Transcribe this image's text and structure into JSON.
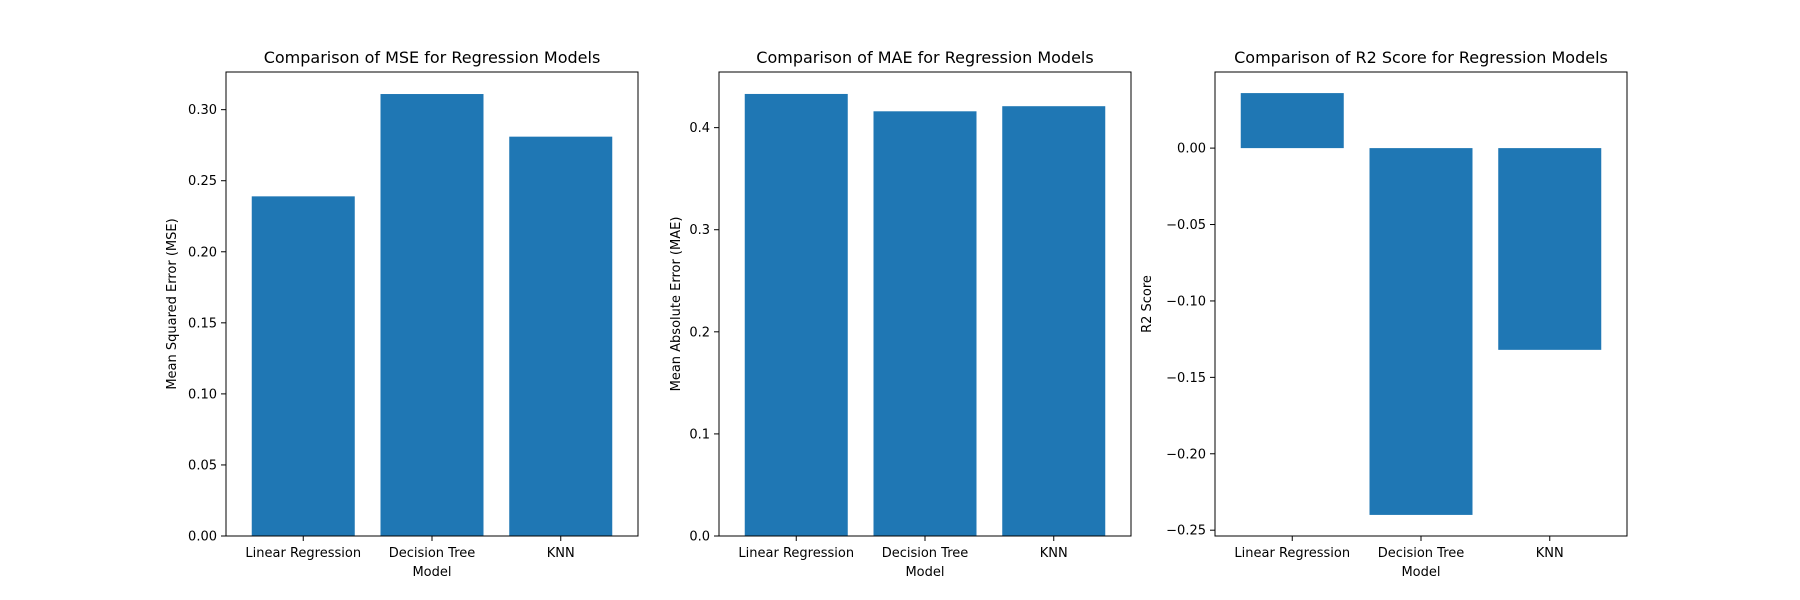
{
  "chart_data": [
    {
      "type": "bar",
      "title": "Comparison of MSE for Regression Models",
      "xlabel": "Model",
      "ylabel": "Mean Squared Error (MSE)",
      "categories": [
        "Linear Regression",
        "Decision Tree",
        "KNN"
      ],
      "values": [
        0.239,
        0.311,
        0.281
      ],
      "ylim": [
        0,
        0.3265
      ],
      "yticks": [
        0.0,
        0.05,
        0.1,
        0.15,
        0.2,
        0.25,
        0.3
      ],
      "tick_decimals": 2,
      "color": "#1f77b4",
      "grid": false
    },
    {
      "type": "bar",
      "title": "Comparison of MAE for Regression Models",
      "xlabel": "Model",
      "ylabel": "Mean Absolute Error (MAE)",
      "categories": [
        "Linear Regression",
        "Decision Tree",
        "KNN"
      ],
      "values": [
        0.433,
        0.416,
        0.421
      ],
      "ylim": [
        0,
        0.4545
      ],
      "yticks": [
        0.0,
        0.1,
        0.2,
        0.3,
        0.4
      ],
      "tick_decimals": 1,
      "color": "#1f77b4",
      "grid": false
    },
    {
      "type": "bar",
      "title": "Comparison of R2 Score for Regression Models",
      "xlabel": "Model",
      "ylabel": "R2 Score",
      "categories": [
        "Linear Regression",
        "Decision Tree",
        "KNN"
      ],
      "values": [
        0.036,
        -0.24,
        -0.132
      ],
      "ylim": [
        -0.2538,
        0.0498
      ],
      "yticks": [
        0.0,
        -0.05,
        -0.1,
        -0.15,
        -0.2,
        -0.25
      ],
      "tick_decimals": 2,
      "color": "#1f77b4",
      "grid": false
    }
  ]
}
